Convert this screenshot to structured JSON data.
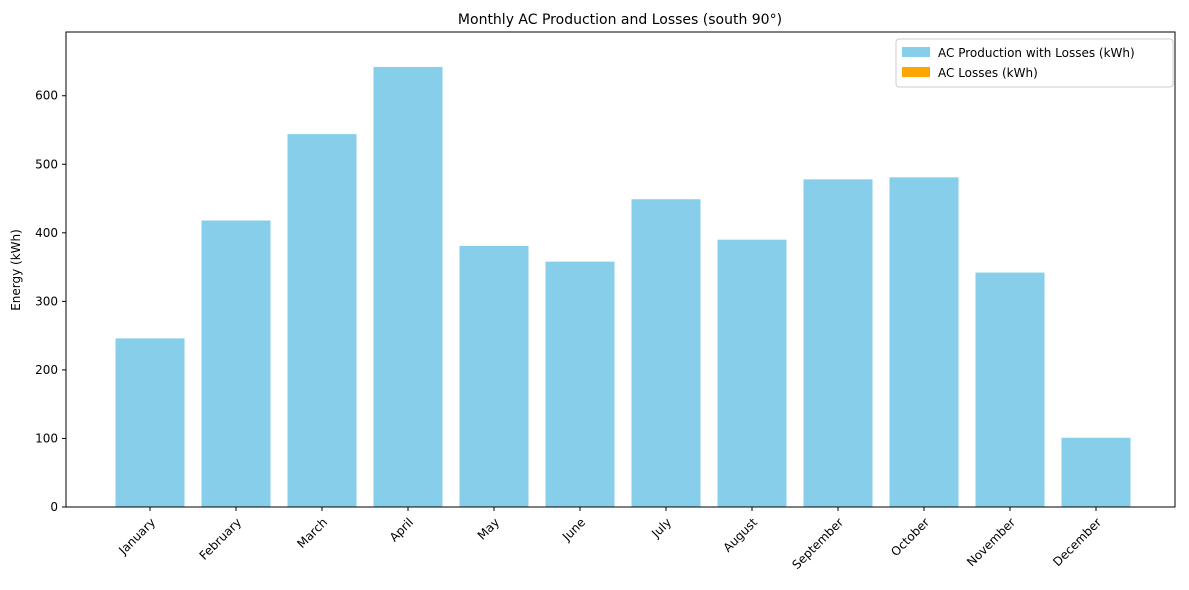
{
  "chart_data": {
    "type": "bar",
    "title": "Monthly AC Production and Losses (south 90°)",
    "xlabel": "",
    "ylabel": "Energy (kWh)",
    "ylim": [
      0,
      693
    ],
    "yticks": [
      0,
      100,
      200,
      300,
      400,
      500,
      600
    ],
    "grid": false,
    "legend_position": "top-right",
    "categories": [
      "January",
      "February",
      "March",
      "April",
      "May",
      "June",
      "July",
      "August",
      "September",
      "October",
      "November",
      "December"
    ],
    "series": [
      {
        "name": "AC Production with Losses (kWh)",
        "color": "#87ceeb",
        "values": [
          246,
          418,
          544,
          642,
          381,
          358,
          449,
          390,
          478,
          481,
          342,
          101
        ]
      },
      {
        "name": "AC Losses (kWh)",
        "color": "#ffa500",
        "values": [
          0,
          0,
          0,
          0,
          0,
          0,
          0,
          0,
          0,
          0,
          0,
          0
        ]
      }
    ]
  }
}
